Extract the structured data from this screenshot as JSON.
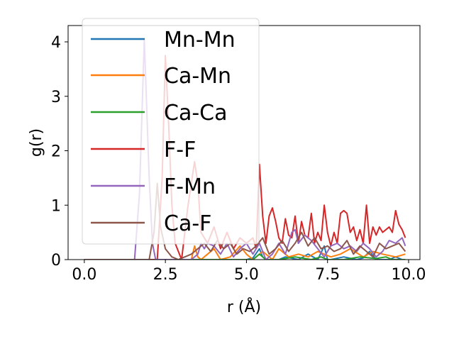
{
  "chart_data": {
    "type": "line",
    "xlabel": "r (Å)",
    "ylabel": "g(r)",
    "xlim": [
      -0.5,
      10.35
    ],
    "ylim": [
      0,
      4.3
    ],
    "xticks": [
      "0.0",
      "2.5",
      "5.0",
      "7.5",
      "10.0"
    ],
    "xtick_values": [
      0,
      2.5,
      5,
      7.5,
      10
    ],
    "yticks": [
      "0",
      "1",
      "2",
      "3",
      "4"
    ],
    "ytick_values": [
      0,
      1,
      2,
      3,
      4
    ],
    "grid": false,
    "legend_position": "upper left",
    "series": [
      {
        "name": "Mn-Mn",
        "color": "#1f77b4",
        "x": [
          0,
          5.0,
          5.2,
          5.4,
          5.5,
          5.6,
          6.0,
          6.2,
          6.6,
          6.9,
          7.2,
          7.4,
          7.5,
          7.6,
          8.0,
          8.4,
          8.6,
          8.8,
          9.0,
          9.4,
          9.6,
          9.8
        ],
        "y": [
          0,
          0,
          0.03,
          0.2,
          0.05,
          0,
          0,
          0.05,
          0,
          0.1,
          0,
          0.25,
          0,
          0,
          0.05,
          0,
          0.03,
          0.15,
          0,
          0,
          0.05,
          0
        ]
      },
      {
        "name": "Ca-Mn",
        "color": "#ff7f0e",
        "x": [
          0,
          3.3,
          3.4,
          3.5,
          3.6,
          3.8,
          4.0,
          4.2,
          4.5,
          4.8,
          5.0,
          5.2,
          5.5,
          5.8,
          6.0,
          6.3,
          6.6,
          6.9,
          7.2,
          7.6,
          7.9,
          8.2,
          8.6,
          8.9,
          9.2,
          9.6,
          9.9
        ],
        "y": [
          0,
          0,
          0.25,
          0.05,
          0,
          0.1,
          0.2,
          0,
          0.05,
          0.25,
          0.1,
          0,
          0.15,
          0,
          0.2,
          0.05,
          0.1,
          0.05,
          0.15,
          0.05,
          0.1,
          0.2,
          0.05,
          0.15,
          0.1,
          0.05,
          0.1
        ]
      },
      {
        "name": "Ca-Ca",
        "color": "#2ca02c",
        "x": [
          0,
          5.2,
          5.4,
          5.5,
          5.6,
          6.0,
          6.5,
          7.0,
          7.3,
          7.5,
          8.0,
          8.5,
          9.0,
          9.3,
          9.5,
          9.9
        ],
        "y": [
          0,
          0,
          0.1,
          0.05,
          0,
          0,
          0.05,
          0,
          0.05,
          0,
          0,
          0.05,
          0.02,
          0.05,
          0,
          0
        ]
      },
      {
        "name": "F-F",
        "color": "#d62728",
        "x": [
          0,
          2.25,
          2.4,
          2.5,
          2.6,
          2.7,
          2.8,
          3.0,
          3.2,
          3.4,
          3.5,
          3.6,
          3.8,
          4.0,
          4.2,
          4.4,
          4.6,
          4.8,
          5.0,
          5.2,
          5.3,
          5.4,
          5.5,
          5.6,
          5.7,
          5.8,
          5.9,
          6.0,
          6.1,
          6.2,
          6.3,
          6.4,
          6.5,
          6.6,
          6.7,
          6.8,
          6.9,
          7.0,
          7.1,
          7.2,
          7.3,
          7.4,
          7.5,
          7.6,
          7.7,
          7.8,
          7.9,
          8.0,
          8.1,
          8.2,
          8.3,
          8.4,
          8.5,
          8.6,
          8.7,
          8.8,
          8.9,
          9.0,
          9.1,
          9.2,
          9.3,
          9.4,
          9.5,
          9.6,
          9.7,
          9.8,
          9.9
        ],
        "y": [
          0,
          0,
          1.5,
          3.75,
          2.5,
          1.0,
          0.3,
          0,
          1.0,
          1.8,
          1.4,
          0.5,
          0.3,
          0.6,
          0.2,
          0.5,
          0.2,
          0.4,
          0.3,
          0.4,
          0.2,
          1.75,
          0.8,
          0.3,
          0.8,
          0.95,
          0.7,
          0.4,
          0.3,
          0.75,
          0.45,
          0.4,
          0.8,
          0.3,
          0.7,
          0.45,
          0.4,
          0.85,
          0.3,
          0.5,
          0.35,
          1.0,
          0.5,
          0.25,
          0.5,
          0.3,
          0.85,
          0.9,
          0.85,
          0.5,
          0.6,
          0.35,
          0.55,
          0.3,
          1.0,
          0.3,
          0.6,
          0.45,
          0.6,
          0.5,
          0.55,
          0.6,
          0.5,
          0.9,
          0.65,
          0.55,
          0.4
        ]
      },
      {
        "name": "F-Mn",
        "color": "#9467bd",
        "x": [
          0,
          1.55,
          1.7,
          1.85,
          2.0,
          2.1,
          2.2,
          3.3,
          3.5,
          3.6,
          3.7,
          3.8,
          4.0,
          4.2,
          4.4,
          4.6,
          4.8,
          5.0,
          5.2,
          5.4,
          5.6,
          5.8,
          6.0,
          6.2,
          6.4,
          6.5,
          6.6,
          6.8,
          7.0,
          7.2,
          7.4,
          7.6,
          7.8,
          8.0,
          8.2,
          8.4,
          8.6,
          8.8,
          9.0,
          9.2,
          9.4,
          9.6,
          9.8,
          9.9
        ],
        "y": [
          0,
          0,
          1.2,
          4.05,
          1.5,
          0.3,
          0,
          0,
          0.1,
          0.3,
          0.2,
          0.3,
          0.25,
          0.1,
          0.3,
          0.05,
          0.2,
          0.3,
          0.1,
          0.3,
          0,
          0.1,
          0.3,
          0.1,
          0.5,
          0.55,
          0.3,
          0.45,
          0.35,
          0.2,
          0.05,
          0.25,
          0.3,
          0.2,
          0.25,
          0.15,
          0.3,
          0.2,
          0.05,
          0.15,
          0.35,
          0.3,
          0.4,
          0.25
        ]
      },
      {
        "name": "Ca-F",
        "color": "#8c564b",
        "x": [
          0,
          2.0,
          2.15,
          2.25,
          2.35,
          2.5,
          2.7,
          2.9,
          3.1,
          3.3,
          3.5,
          3.7,
          3.9,
          4.1,
          4.3,
          4.5,
          4.7,
          4.9,
          5.1,
          5.3,
          5.5,
          5.7,
          5.9,
          6.1,
          6.3,
          6.5,
          6.7,
          6.9,
          7.1,
          7.3,
          7.5,
          7.7,
          7.9,
          8.1,
          8.3,
          8.5,
          8.7,
          8.9,
          9.1,
          9.3,
          9.5,
          9.7,
          9.9
        ],
        "y": [
          0,
          0,
          0.5,
          1.4,
          0.6,
          0.2,
          0.05,
          0,
          0.05,
          0.1,
          0.2,
          0.3,
          0.15,
          0.35,
          0.2,
          0.3,
          0.1,
          0.2,
          0.15,
          0.25,
          0.4,
          0.1,
          0.2,
          0.35,
          0.15,
          0.3,
          0.5,
          0.25,
          0.4,
          0.2,
          0.25,
          0.15,
          0.2,
          0.35,
          0.1,
          0.25,
          0.15,
          0.05,
          0.3,
          0.2,
          0.25,
          0.3,
          0.15
        ]
      }
    ]
  }
}
